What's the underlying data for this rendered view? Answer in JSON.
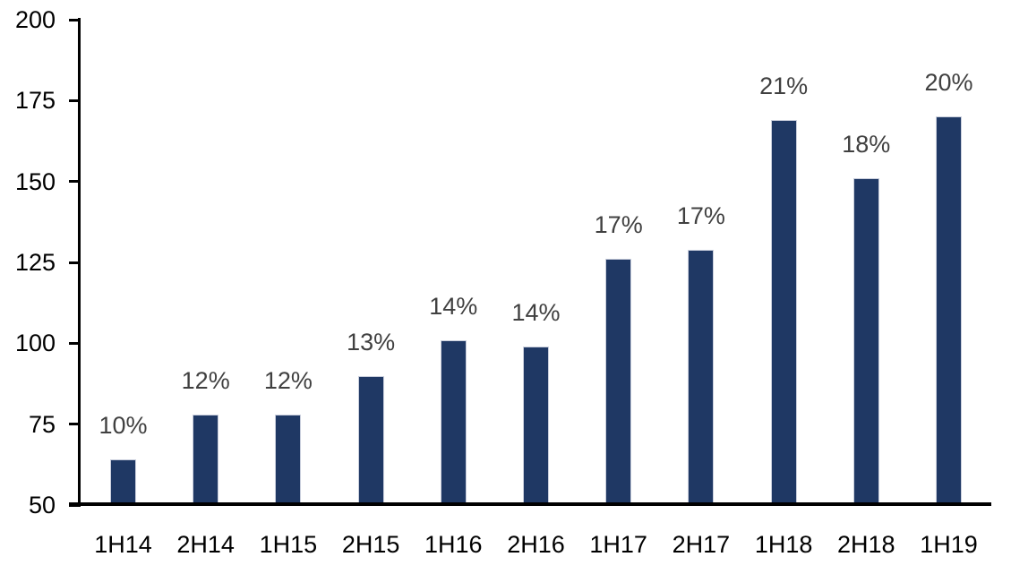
{
  "chart_data": {
    "type": "bar",
    "title": "",
    "xlabel": "",
    "ylabel": "",
    "categories": [
      "1H14",
      "2H14",
      "1H15",
      "2H15",
      "1H16",
      "2H16",
      "1H17",
      "2H17",
      "1H18",
      "2H18",
      "1H19"
    ],
    "values": [
      64,
      78,
      78,
      90,
      101,
      99,
      126,
      129,
      169,
      151,
      170
    ],
    "bar_labels": [
      "10%",
      "12%",
      "12%",
      "13%",
      "14%",
      "14%",
      "17%",
      "17%",
      "21%",
      "18%",
      "20%"
    ],
    "ylim": [
      50,
      200
    ],
    "yticks": [
      50,
      75,
      100,
      125,
      150,
      175,
      200
    ],
    "grid": false,
    "legend": false,
    "colors": {
      "bar_fill": "#1F3864",
      "bar_border": "#C9CEDC",
      "data_label": "#404040",
      "axis_text": "#000000",
      "axis_line": "#000000",
      "background": "#FFFFFF"
    }
  }
}
